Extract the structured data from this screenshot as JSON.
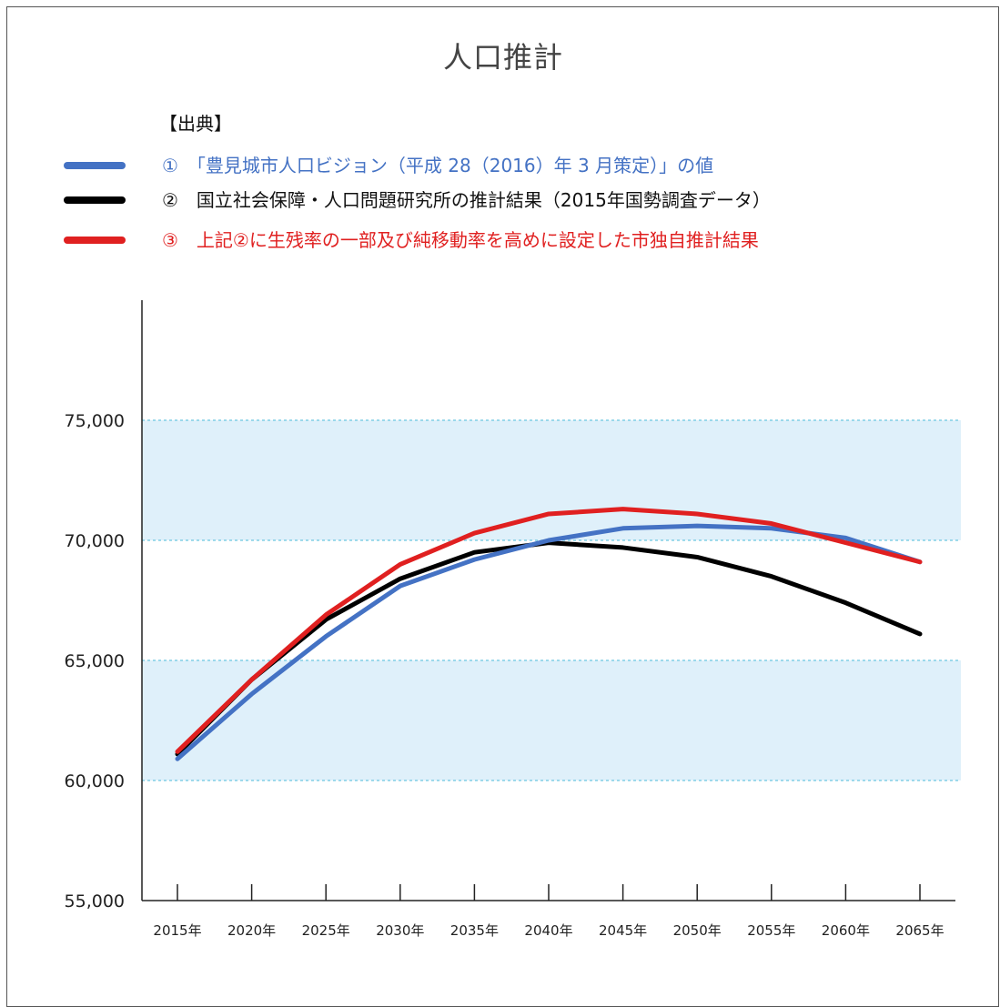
{
  "title": "人口推計",
  "source_heading": "【出典】",
  "legend": [
    {
      "text": "①　「豊見城市人口ビジョン（平成 28（2016）年 3 月策定）」の値",
      "color": "#4472c4"
    },
    {
      "text": "②　国立社会保障・人口問題研究所の推計結果（2015年国勢調査データ）",
      "color": "#000000"
    },
    {
      "text": "③　上記②に生残率の一部及び純移動率を高めに設定した市独自推計結果",
      "color": "#e02020"
    }
  ],
  "colors": {
    "band": "#dff0fa",
    "grid": "#6cc7e0",
    "axis": "#222222"
  },
  "chart_data": {
    "type": "line",
    "title": "人口推計",
    "categories": [
      "2015年",
      "2020年",
      "2025年",
      "2030年",
      "2035年",
      "2040年",
      "2045年",
      "2050年",
      "2055年",
      "2060年",
      "2065年"
    ],
    "series": [
      {
        "name": "①",
        "color": "#4472c4",
        "values": [
          60900,
          63600,
          66000,
          68100,
          69200,
          70000,
          70500,
          70600,
          70500,
          70100,
          69100
        ]
      },
      {
        "name": "②",
        "color": "#000000",
        "values": [
          61100,
          64200,
          66700,
          68400,
          69500,
          69900,
          69700,
          69300,
          68500,
          67400,
          66100
        ]
      },
      {
        "name": "③",
        "color": "#e02020",
        "values": [
          61200,
          64200,
          66900,
          69000,
          70300,
          71100,
          71300,
          71100,
          70700,
          69900,
          69100
        ]
      }
    ],
    "ylim": [
      55000,
      80000
    ],
    "yticks": [
      55000,
      60000,
      65000,
      70000,
      75000
    ],
    "ytick_labels": [
      "55,000",
      "60,000",
      "65,000",
      "70,000",
      "75,000"
    ],
    "bands": [
      [
        60000,
        65000
      ],
      [
        70000,
        75000
      ]
    ],
    "gridlines": [
      60000,
      65000,
      70000,
      75000
    ],
    "xlabel": "",
    "ylabel": ""
  }
}
